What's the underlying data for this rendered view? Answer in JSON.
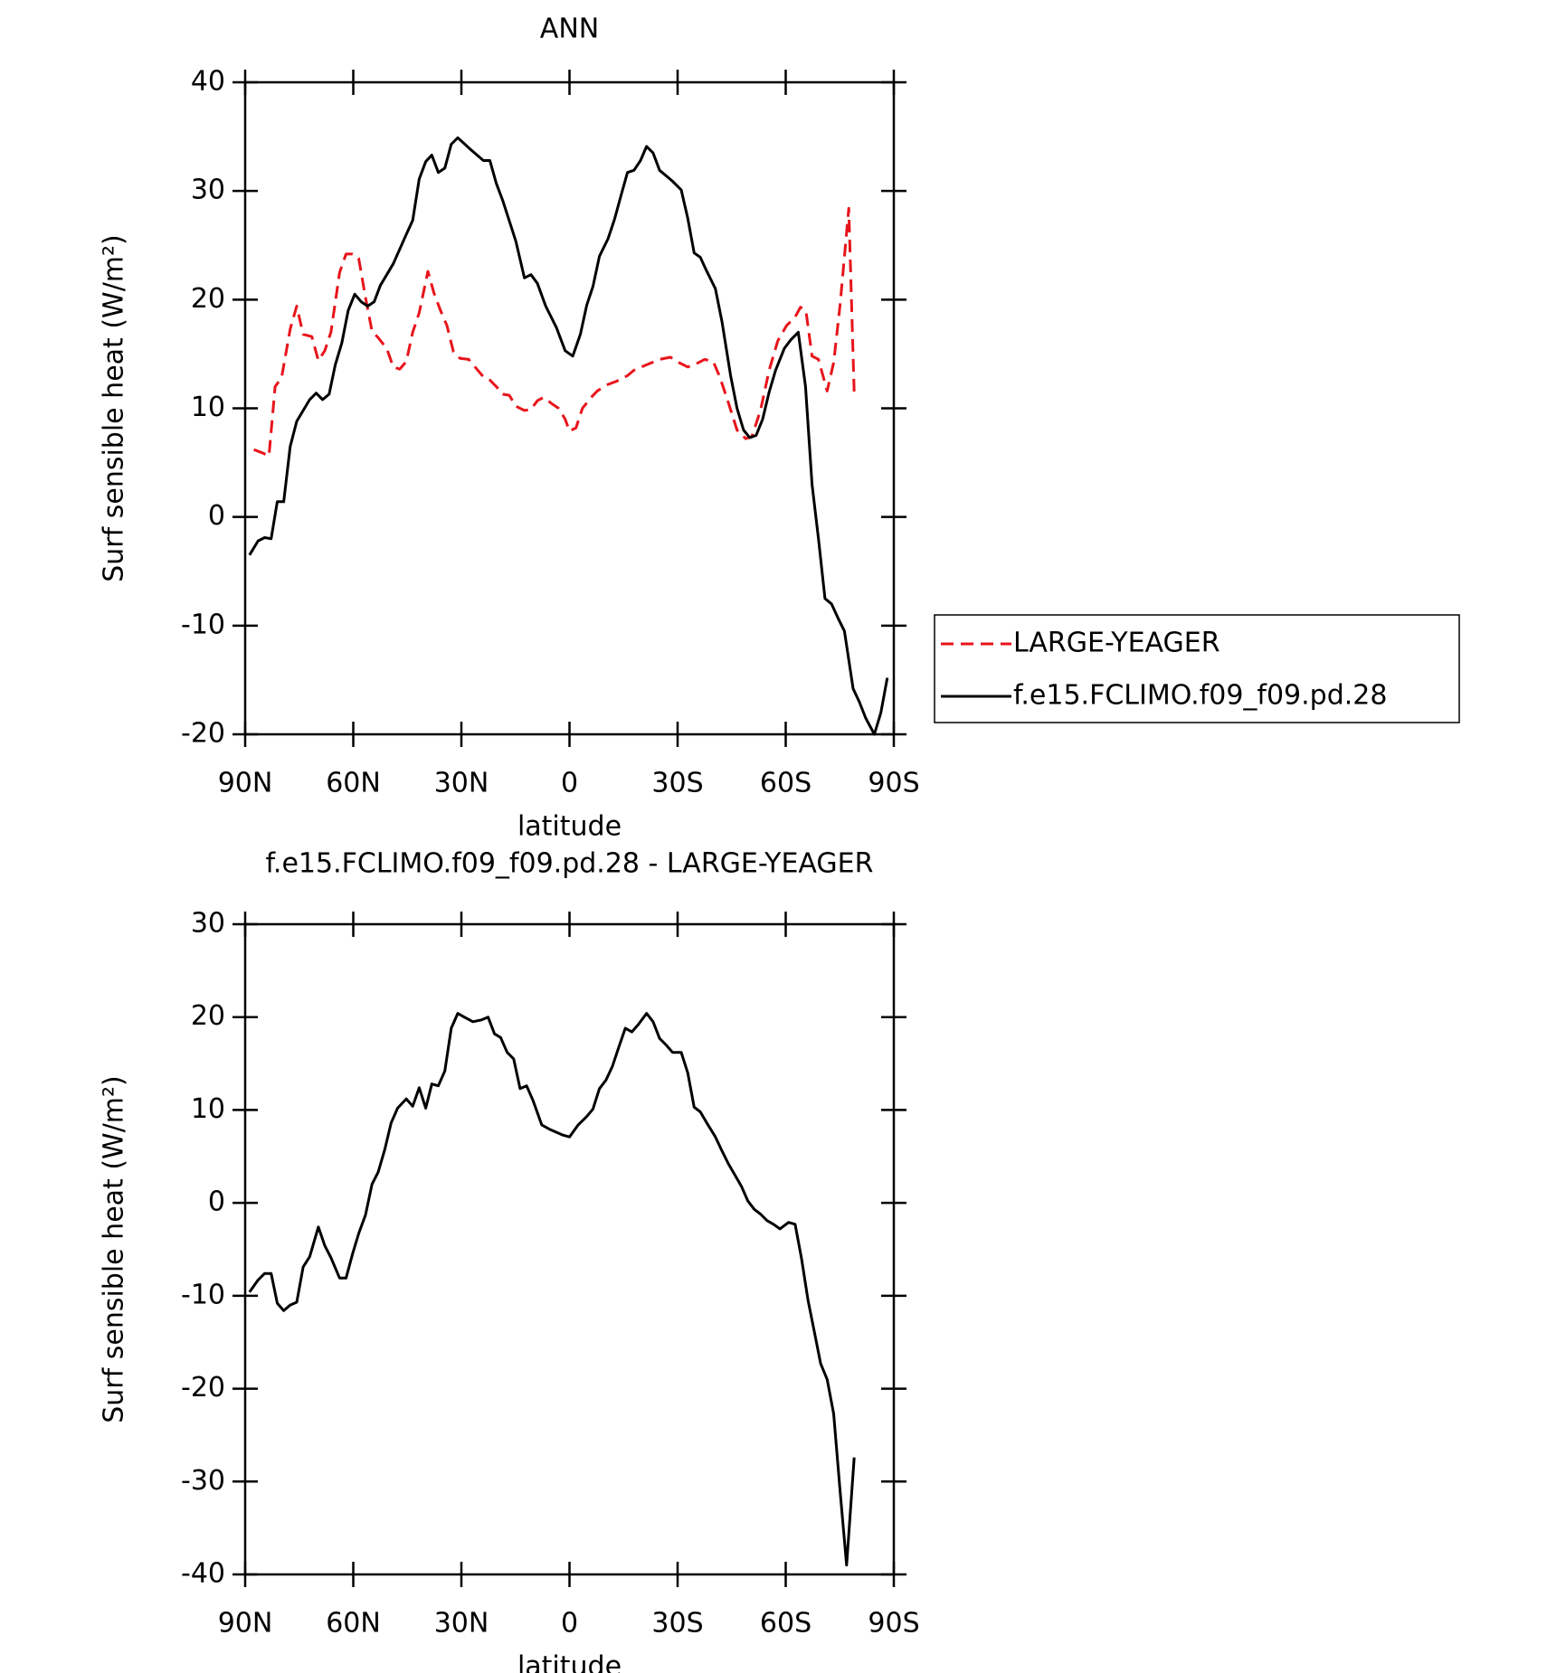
{
  "chart_data": [
    {
      "type": "line",
      "title": "ANN",
      "xlabel": "latitude",
      "ylabel": "Surf sensible heat (W/m²)",
      "xlim": [
        90,
        -90
      ],
      "ylim": [
        -20,
        40
      ],
      "xticks": [
        {
          "value": 90,
          "label": "90N"
        },
        {
          "value": 60,
          "label": "60N"
        },
        {
          "value": 30,
          "label": "30N"
        },
        0,
        {
          "value": -30,
          "label": "30S"
        },
        {
          "value": -60,
          "label": "60S"
        },
        {
          "value": -90,
          "label": "90S"
        }
      ],
      "yticks": [
        -20,
        -10,
        0,
        10,
        20,
        30,
        40
      ],
      "legend": "right",
      "series": [
        {
          "name": "LARGE-YEAGER",
          "color": "#e8141b",
          "dashed": true,
          "x": [
            87.6,
            85.2,
            83.4,
            81.7,
            79.9,
            77.5,
            75.7,
            73.9,
            71.5,
            69.7,
            67.9,
            66.2,
            63.8,
            62.0,
            60.2,
            58.5,
            56.6,
            54.8,
            53.1,
            50.7,
            48.9,
            47.1,
            45.3,
            43.5,
            41.7,
            39.3,
            37.6,
            35.8,
            34.0,
            32.2,
            30.4,
            28.0,
            26.2,
            23.9,
            22.1,
            20.3,
            18.5,
            16.7,
            14.9,
            12.5,
            10.7,
            8.9,
            7.2,
            4.8,
            3.0,
            1.2,
            0.0,
            -1.8,
            -3.6,
            -6.0,
            -7.7,
            -10.7,
            -13.1,
            -16.1,
            -17.9,
            -21.4,
            -25.0,
            -28.0,
            -30.4,
            -32.8,
            -35.2,
            -37.5,
            -39.9,
            -41.7,
            -44.1,
            -46.5,
            -48.9,
            -50.6,
            -53.0,
            -55.4,
            -57.8,
            -60.2,
            -62.6,
            -64.1,
            -65.6,
            -67.3,
            -69.1,
            -71.5,
            -73.3,
            -75.1,
            -77.5,
            -79.0
          ],
          "values": [
            6.2,
            5.9,
            5.6,
            12.0,
            12.8,
            17.3,
            19.4,
            16.8,
            16.6,
            14.4,
            15.3,
            17.0,
            22.5,
            24.2,
            24.2,
            23.8,
            20.2,
            17.1,
            16.5,
            15.5,
            13.8,
            13.6,
            14.3,
            17.0,
            18.8,
            22.6,
            20.6,
            19.0,
            17.6,
            15.2,
            14.6,
            14.5,
            13.8,
            12.9,
            12.6,
            12.0,
            11.3,
            11.2,
            10.2,
            9.8,
            9.9,
            10.7,
            11.0,
            10.4,
            10.0,
            9.0,
            7.9,
            8.2,
            10.0,
            11.0,
            11.6,
            12.2,
            12.5,
            13.0,
            13.5,
            14.0,
            14.5,
            14.7,
            14.2,
            13.8,
            14.1,
            14.5,
            14.3,
            12.9,
            10.5,
            8.0,
            7.2,
            7.4,
            9.8,
            13.5,
            16.2,
            17.6,
            18.4,
            19.3,
            19.0,
            14.8,
            14.5,
            11.6,
            14.2,
            19.5,
            28.4,
            11.4
          ]
        },
        {
          "name": "f.e15.FCLIMO.f09_f09.pd.28",
          "color": "#000000",
          "dashed": false,
          "x": [
            88.8,
            86.4,
            84.6,
            82.8,
            81.1,
            79.3,
            77.5,
            75.7,
            72.1,
            70.3,
            68.5,
            66.7,
            65.0,
            63.2,
            61.4,
            59.6,
            57.8,
            56.0,
            54.2,
            52.5,
            48.9,
            45.3,
            43.5,
            41.7,
            39.9,
            38.2,
            36.4,
            34.6,
            32.8,
            31.0,
            27.4,
            23.9,
            22.1,
            20.3,
            18.5,
            14.9,
            12.5,
            10.7,
            8.9,
            6.6,
            3.6,
            1.2,
            -0.9,
            -3.0,
            -4.8,
            -6.5,
            -8.3,
            -10.7,
            -12.5,
            -14.3,
            -16.1,
            -17.9,
            -19.7,
            -21.4,
            -23.2,
            -25.0,
            -28.6,
            -31.0,
            -32.8,
            -34.6,
            -36.3,
            -38.1,
            -40.5,
            -42.3,
            -44.7,
            -46.5,
            -48.3,
            -50.0,
            -51.8,
            -53.6,
            -55.4,
            -57.2,
            -59.6,
            -61.4,
            -63.5,
            -65.5,
            -67.3,
            -69.1,
            -70.9,
            -72.7,
            -74.5,
            -76.3,
            -78.7,
            -80.4,
            -82.2,
            -84.6,
            -86.4,
            -88.2
          ],
          "values": [
            -3.5,
            -2.2,
            -1.9,
            -2.0,
            1.4,
            1.4,
            6.5,
            8.8,
            10.8,
            11.4,
            10.8,
            11.3,
            14.0,
            16.0,
            19.0,
            20.5,
            19.8,
            19.4,
            19.8,
            21.3,
            23.3,
            26.0,
            27.3,
            31.1,
            32.7,
            33.3,
            31.7,
            32.1,
            34.3,
            34.9,
            33.8,
            32.8,
            32.8,
            30.7,
            29.1,
            25.4,
            22.0,
            22.3,
            21.5,
            19.4,
            17.4,
            15.3,
            14.8,
            16.8,
            19.5,
            21.2,
            24.0,
            25.6,
            27.4,
            29.6,
            31.7,
            31.9,
            32.8,
            34.1,
            33.5,
            31.9,
            30.9,
            30.1,
            27.5,
            24.3,
            23.9,
            22.6,
            21.0,
            18.0,
            13.0,
            10.0,
            8.0,
            7.3,
            7.5,
            9.0,
            11.5,
            13.5,
            15.5,
            16.3,
            17.0,
            12.0,
            3.0,
            -2.0,
            -7.5,
            -8.0,
            -9.3,
            -10.5,
            -15.8,
            -17.0,
            -18.5,
            -20.0,
            -18.0,
            -14.8
          ]
        }
      ]
    },
    {
      "type": "line",
      "title": "f.e15.FCLIMO.f09_f09.pd.28 - LARGE-YEAGER",
      "xlabel": "latitude",
      "ylabel": "Surf sensible heat (W/m²)",
      "xlim": [
        90,
        -90
      ],
      "ylim": [
        -40,
        30
      ],
      "xticks": [
        {
          "value": 90,
          "label": "90N"
        },
        {
          "value": 60,
          "label": "60N"
        },
        {
          "value": 30,
          "label": "30N"
        },
        0,
        {
          "value": -30,
          "label": "30S"
        },
        {
          "value": -60,
          "label": "60S"
        },
        {
          "value": -90,
          "label": "90S"
        }
      ],
      "yticks": [
        -40,
        -30,
        -20,
        -10,
        0,
        10,
        20,
        30
      ],
      "series": [
        {
          "color": "#000000",
          "dashed": false,
          "x": [
            88.8,
            86.4,
            84.6,
            82.8,
            81.1,
            79.3,
            77.5,
            75.7,
            73.9,
            72.1,
            69.7,
            67.9,
            66.2,
            63.8,
            62.0,
            60.2,
            58.5,
            56.6,
            54.8,
            53.1,
            51.3,
            49.5,
            47.7,
            45.3,
            43.5,
            41.7,
            39.9,
            38.2,
            36.4,
            34.6,
            32.8,
            31.0,
            29.2,
            26.8,
            24.4,
            22.6,
            20.8,
            19.1,
            17.3,
            15.5,
            13.7,
            11.9,
            10.1,
            7.7,
            5.4,
            3.6,
            1.8,
            0.0,
            -2.4,
            -4.8,
            -6.5,
            -8.3,
            -10.1,
            -11.9,
            -13.7,
            -15.5,
            -17.3,
            -19.1,
            -21.4,
            -23.2,
            -25.0,
            -26.8,
            -28.6,
            -31.0,
            -32.8,
            -34.6,
            -36.3,
            -38.1,
            -40.5,
            -42.3,
            -44.1,
            -45.9,
            -47.7,
            -49.5,
            -51.3,
            -53.0,
            -54.8,
            -56.6,
            -58.4,
            -60.8,
            -62.6,
            -64.4,
            -66.2,
            -68.0,
            -69.7,
            -71.5,
            -73.3,
            -75.1,
            -76.9,
            -79.0
          ],
          "values": [
            -9.6,
            -8.3,
            -7.6,
            -7.6,
            -10.8,
            -11.6,
            -11.0,
            -10.7,
            -6.9,
            -5.8,
            -2.6,
            -4.6,
            -5.9,
            -8.1,
            -8.1,
            -5.5,
            -3.3,
            -1.3,
            2.0,
            3.3,
            5.7,
            8.6,
            10.2,
            11.2,
            10.4,
            12.4,
            10.2,
            12.8,
            12.6,
            14.2,
            18.8,
            20.4,
            20.0,
            19.5,
            19.7,
            20.0,
            18.2,
            17.8,
            16.2,
            15.5,
            12.3,
            12.6,
            11.0,
            8.4,
            7.9,
            7.6,
            7.3,
            7.1,
            8.4,
            9.3,
            10.1,
            12.3,
            13.2,
            14.7,
            16.8,
            18.8,
            18.4,
            19.2,
            20.4,
            19.5,
            17.7,
            17.0,
            16.2,
            16.2,
            14.0,
            10.3,
            9.8,
            8.6,
            7.1,
            5.6,
            4.2,
            3.0,
            1.8,
            0.2,
            -0.7,
            -1.2,
            -1.9,
            -2.3,
            -2.8,
            -2.1,
            -2.3,
            -6.0,
            -10.5,
            -14.0,
            -17.3,
            -19.0,
            -22.7,
            -31.0,
            -39.0,
            -27.4
          ]
        }
      ]
    }
  ]
}
